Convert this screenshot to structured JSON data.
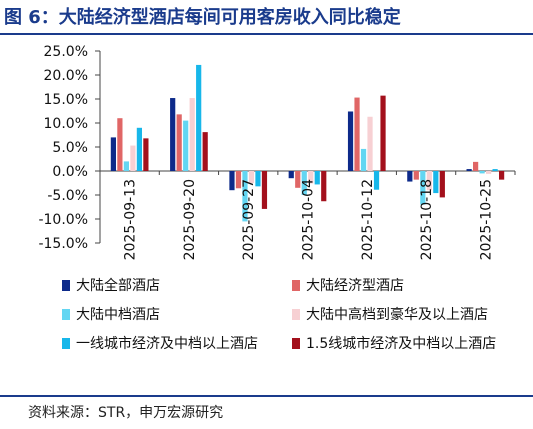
{
  "title": "图 6：大陆经济型酒店每间可用客房收入同比稳定",
  "source": "资料来源：STR，申万宏源研究",
  "chart_data": {
    "type": "bar",
    "categories": [
      "2025-09-13",
      "2025-09-20",
      "2025-09-27",
      "2025-10-04",
      "2025-10-12",
      "2025-10-18",
      "2025-10-25"
    ],
    "ylim": [
      -15,
      25
    ],
    "yticks": [
      "25.0%",
      "20.0%",
      "15.0%",
      "10.0%",
      "5.0%",
      "0.0%",
      "-5.0%",
      "-10.0%",
      "-15.0%"
    ],
    "legend_position": "bottom",
    "series": [
      {
        "name": "大陆全部酒店",
        "color": "#0d2a8a",
        "values": [
          7.0,
          15.2,
          -4.0,
          -1.5,
          12.4,
          -2.2,
          0.4
        ]
      },
      {
        "name": "大陆经济型酒店",
        "color": "#e06666",
        "values": [
          11.0,
          11.8,
          -3.6,
          -3.5,
          15.3,
          -1.8,
          1.9
        ]
      },
      {
        "name": "大陆中档酒店",
        "color": "#63d6f2",
        "values": [
          2.0,
          10.5,
          -10.5,
          -5.0,
          4.6,
          -7.0,
          -0.5
        ]
      },
      {
        "name": "大陆中高档到豪华及以上酒店",
        "color": "#f7d0d3",
        "values": [
          5.3,
          15.2,
          -2.5,
          -2.6,
          11.3,
          -4.0,
          -0.6
        ]
      },
      {
        "name": "一线城市经济及中档以上酒店",
        "color": "#17b7ea",
        "values": [
          9.0,
          22.1,
          -3.2,
          -2.8,
          -3.9,
          -4.6,
          0.4
        ]
      },
      {
        "name": "1.5线城市经济及中档以上酒店",
        "color": "#a3101c",
        "values": [
          6.8,
          8.1,
          -7.9,
          -6.3,
          15.7,
          -5.5,
          -1.8
        ]
      }
    ]
  }
}
